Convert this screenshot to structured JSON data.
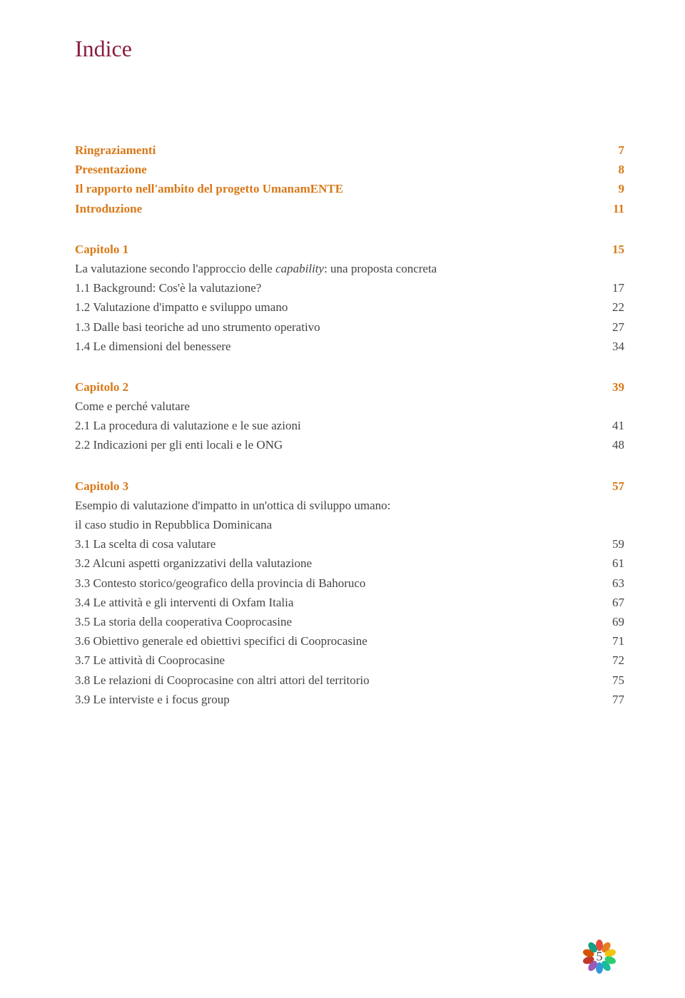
{
  "colors": {
    "title": "#8b1e3f",
    "heading": "#d97817",
    "body": "#444444",
    "background": "#ffffff"
  },
  "title": "Indice",
  "front": [
    {
      "label": "Ringraziamenti",
      "page": "7"
    },
    {
      "label": "Presentazione",
      "page": "8"
    },
    {
      "label": "Il rapporto nell'ambito del progetto UmanamENTE",
      "page": "9"
    },
    {
      "label": "Introduzione",
      "page": "11"
    }
  ],
  "chapter1": {
    "title": "Capitolo 1",
    "page": "15",
    "subtitle_a": "La valutazione secondo l'approccio delle ",
    "subtitle_b": "capability",
    "subtitle_c": ": una proposta concreta",
    "items": [
      {
        "label": "1.1 Background: Cos'è la valutazione?",
        "page": "17"
      },
      {
        "label": "1.2 Valutazione d'impatto e sviluppo umano",
        "page": "22"
      },
      {
        "label": "1.3 Dalle basi teoriche ad uno strumento operativo",
        "page": "27"
      },
      {
        "label": "1.4 Le dimensioni del benessere",
        "page": "34"
      }
    ]
  },
  "chapter2": {
    "title": "Capitolo 2",
    "page": "39",
    "subtitle": "Come e perché valutare",
    "items": [
      {
        "label": "2.1 La procedura di valutazione e le sue azioni",
        "page": "41"
      },
      {
        "label": "2.2 Indicazioni per gli enti locali e le ONG",
        "page": "48"
      }
    ]
  },
  "chapter3": {
    "title": "Capitolo 3",
    "page": "57",
    "subtitle_line1": "Esempio di valutazione d'impatto in un'ottica di sviluppo umano:",
    "subtitle_line2": "il caso studio in Repubblica Dominicana",
    "items": [
      {
        "label": "3.1 La scelta di cosa valutare",
        "page": "59"
      },
      {
        "label": "3.2 Alcuni aspetti organizzativi della valutazione",
        "page": "61"
      },
      {
        "label": "3.3 Contesto storico/geografico della provincia di Bahoruco",
        "page": "63"
      },
      {
        "label": "3.4 Le attività e gli interventi di Oxfam Italia",
        "page": "67"
      },
      {
        "label": "3.5 La storia della cooperativa Cooprocasine",
        "page": "69"
      },
      {
        "label": "3.6 Obiettivo generale ed obiettivi specifici di Cooprocasine",
        "page": "71"
      },
      {
        "label": "3.7 Le attività di Cooprocasine",
        "page": "72"
      },
      {
        "label": "3.8 Le relazioni di Cooprocasine con altri attori del territorio",
        "page": "75"
      },
      {
        "label": "3.9 Le interviste e i focus group",
        "page": "77"
      }
    ]
  },
  "page_number": "5",
  "petal_colors": [
    "#e84c3d",
    "#e67e22",
    "#f1c40f",
    "#2ecc71",
    "#1abc9c",
    "#3498db",
    "#9b59b6",
    "#c0392b",
    "#d35400",
    "#16a085"
  ]
}
